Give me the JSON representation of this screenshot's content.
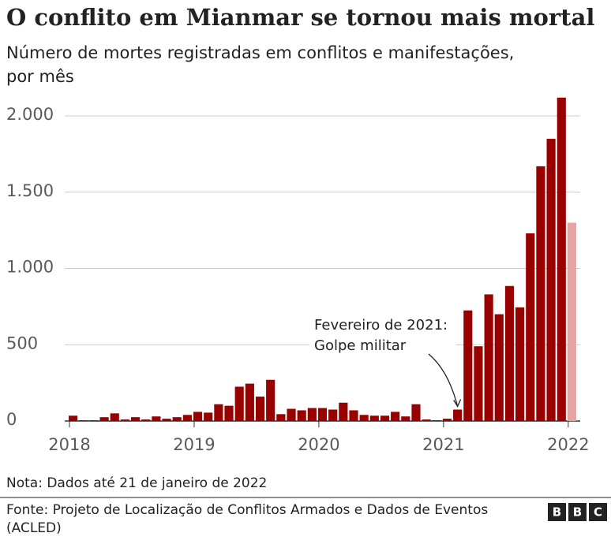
{
  "chart_data": {
    "type": "bar",
    "title": "O conflito em Mianmar se tornou mais mortal",
    "subtitle": [
      "Número de mortes registradas em conflitos e manifestações,",
      "por mês"
    ],
    "categories": [
      "2018",
      null,
      null,
      null,
      null,
      null,
      null,
      null,
      null,
      null,
      null,
      null,
      "2019",
      null,
      null,
      null,
      null,
      null,
      null,
      null,
      null,
      null,
      null,
      null,
      "2020",
      null,
      null,
      null,
      null,
      null,
      null,
      null,
      null,
      null,
      null,
      null,
      "2021",
      null,
      null,
      null,
      null,
      null,
      null,
      null,
      null,
      null,
      null,
      null,
      "2022"
    ],
    "values": [
      35,
      5,
      5,
      25,
      50,
      10,
      25,
      10,
      30,
      15,
      25,
      40,
      60,
      55,
      110,
      100,
      225,
      245,
      160,
      270,
      45,
      80,
      70,
      85,
      85,
      75,
      120,
      70,
      40,
      35,
      35,
      60,
      30,
      110,
      10,
      5,
      15,
      75,
      725,
      490,
      830,
      700,
      885,
      745,
      1230,
      1670,
      1850,
      2120,
      1300
    ],
    "color": "#990000",
    "partial_color": "#e8a3a3",
    "partial_index": 48,
    "ylim": [
      0,
      2150
    ],
    "yticks": [
      0,
      500,
      {
        "value": 1000,
        "label": "1.000"
      },
      {
        "value": 1500,
        "label": "1.500"
      },
      {
        "value": 2000,
        "label": "2.000"
      }
    ],
    "grid": true,
    "annotation": {
      "lines": [
        "Fevereiro de 2021:",
        "Golpe militar"
      ],
      "index": 37
    },
    "note": "Nota: Dados até 21 de janeiro de 2022",
    "source": [
      "Fonte: Projeto de Localização de Conflitos Armados e Dados de Eventos",
      "(ACLED)"
    ],
    "logo": [
      "B",
      "B",
      "C"
    ]
  }
}
